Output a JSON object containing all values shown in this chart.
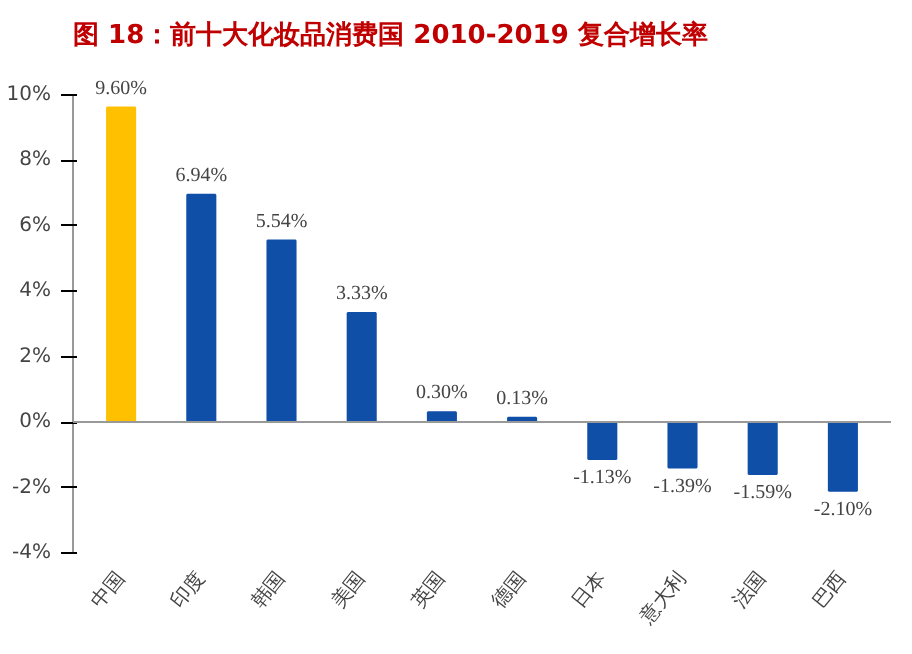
{
  "chart_data": {
    "type": "bar",
    "title": "图 18：前十大化妆品消费国 2010-2019 复合增长率",
    "categories": [
      "中国",
      "印度",
      "韩国",
      "美国",
      "英国",
      "德国",
      "日本",
      "意大利",
      "法国",
      "巴西"
    ],
    "values": [
      9.6,
      6.94,
      5.54,
      3.33,
      0.3,
      0.13,
      -1.13,
      -1.39,
      -1.59,
      -2.1
    ],
    "colors": [
      "#ffc000",
      "#0f4fa8",
      "#0f4fa8",
      "#0f4fa8",
      "#0f4fa8",
      "#0f4fa8",
      "#0f4fa8",
      "#0f4fa8",
      "#0f4fa8",
      "#0f4fa8"
    ],
    "value_labels": [
      "9.60%",
      "6.94%",
      "5.54%",
      "3.33%",
      "0.30%",
      "0.13%",
      "-1.13%",
      "-1.39%",
      "-1.59%",
      "-2.10%"
    ],
    "ylim": [
      -4,
      10
    ],
    "yticks": [
      {
        "value": -4,
        "label": "-4%"
      },
      {
        "value": -2,
        "label": "-2%"
      },
      {
        "value": 0,
        "label": "0%"
      },
      {
        "value": 2,
        "label": "2%"
      },
      {
        "value": 4,
        "label": "4%"
      },
      {
        "value": 6,
        "label": "6%"
      },
      {
        "value": 8,
        "label": "8%"
      },
      {
        "value": 10,
        "label": "10%"
      }
    ],
    "ref_lines": [
      {
        "axis": "y",
        "value": 0,
        "color": "#999999"
      }
    ],
    "grid": false
  }
}
